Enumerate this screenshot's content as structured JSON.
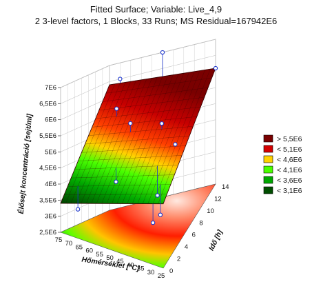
{
  "chart_data": {
    "type": "surface3d",
    "title": "Fitted Surface; Variable: Live_4,9",
    "subtitle": "2 3-level factors, 1 Blocks, 33 Runs; MS Residual=167942E6",
    "xlabel": "Hőmérséklet [°C]",
    "ylabel": "Idő [h]",
    "zlabel": "Élősejt koncentráció [sejt/ml]",
    "x_ticks": [
      "75",
      "70",
      "65",
      "60",
      "55",
      "50",
      "45",
      "40",
      "35",
      "30",
      "25"
    ],
    "y_ticks": [
      "0",
      "2",
      "4",
      "6",
      "8",
      "10",
      "12",
      "14"
    ],
    "z_ticks": [
      "2,5E6",
      "3E6",
      "3,5E6",
      "4E6",
      "4,5E6",
      "5E6",
      "5,5E6",
      "6E6",
      "6,5E6",
      "7E6"
    ],
    "xlim": [
      25,
      75
    ],
    "ylim": [
      0,
      14
    ],
    "zlim": [
      2500000,
      7000000
    ],
    "legend": {
      "position": "right",
      "entries": [
        {
          "label": "> 5,5E6",
          "color": "#7a0000"
        },
        {
          "label": "< 5,1E6",
          "color": "#d40000"
        },
        {
          "label": "< 4,6E6",
          "color": "#ffd200"
        },
        {
          "label": "< 4,1E6",
          "color": "#4aff00"
        },
        {
          "label": "< 3,6E6",
          "color": "#00a800"
        },
        {
          "label": "< 3,1E6",
          "color": "#004e00"
        }
      ]
    },
    "surface_corners": [
      {
        "x": 75,
        "y": 0,
        "z": 3400000
      },
      {
        "x": 25,
        "y": 0,
        "z": 4500000
      },
      {
        "x": 25,
        "y": 14,
        "z": 6100000
      },
      {
        "x": 75,
        "y": 14,
        "z": 6400000
      }
    ],
    "points": [
      {
        "x": 70,
        "y": 14,
        "z": 6500000
      },
      {
        "x": 50,
        "y": 14,
        "z": 7000000
      },
      {
        "x": 25,
        "y": 14,
        "z": 6100000
      },
      {
        "x": 65,
        "y": 10,
        "z": 5800000
      },
      {
        "x": 55,
        "y": 8,
        "z": 5500000
      },
      {
        "x": 40,
        "y": 8,
        "z": 5500000
      },
      {
        "x": 30,
        "y": 6,
        "z": 5200000
      },
      {
        "x": 55,
        "y": 4,
        "z": 4100000
      },
      {
        "x": 35,
        "y": 4,
        "z": 3900000
      },
      {
        "x": 70,
        "y": 2,
        "z": 3200000
      },
      {
        "x": 30,
        "y": 2,
        "z": 3700000
      },
      {
        "x": 30,
        "y": 0,
        "z": 3800000
      }
    ]
  }
}
